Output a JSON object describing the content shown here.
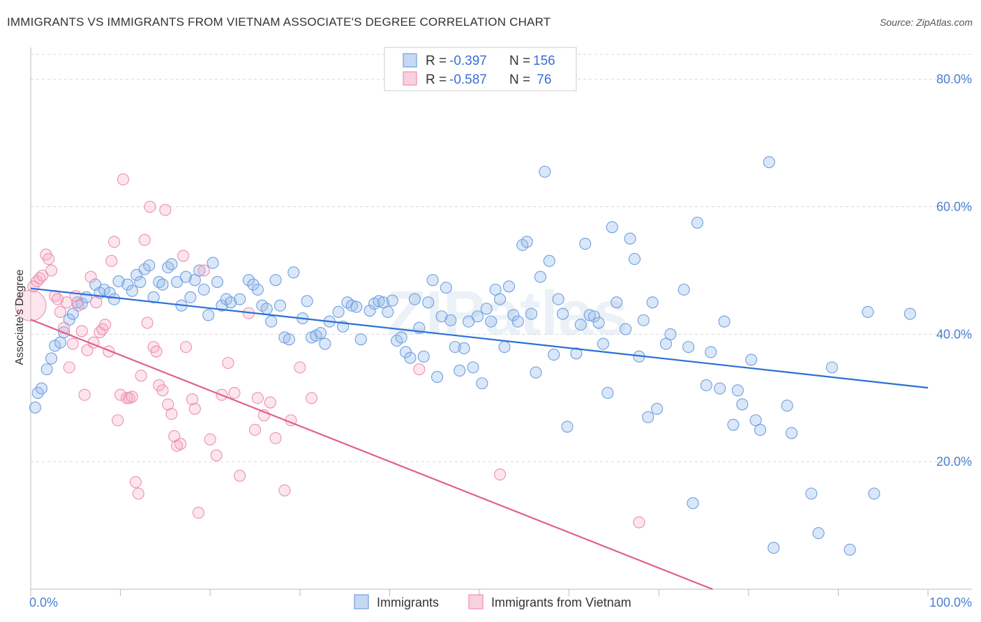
{
  "title": "IMMIGRANTS VS IMMIGRANTS FROM VIETNAM ASSOCIATE'S DEGREE CORRELATION CHART",
  "source": "Source: ZipAtlas.com",
  "watermark": "ZIPatlas",
  "colors": {
    "blue": "#6f9fe0",
    "blue_fill": "rgba(150,185,235,0.35)",
    "blue_line": "#2a6fd6",
    "pink": "#ee8fb0",
    "pink_fill": "rgba(245,170,195,0.30)",
    "pink_line": "#e0608f",
    "tick_label": "#4a7fd0",
    "grid": "#d8d8d8"
  },
  "legend": {
    "rows": [
      {
        "r_label": "R = ",
        "r_value": "-0.397",
        "n_label": "N = ",
        "n_value": "156"
      },
      {
        "r_label": "R = ",
        "r_value": "-0.587",
        "n_label": "N = ",
        "n_value": " 76"
      }
    ]
  },
  "bottom_legend": [
    "Immigrants",
    "Immigrants from Vietnam"
  ],
  "chart_data": {
    "type": "scatter",
    "title": "IMMIGRANTS VS IMMIGRANTS FROM VIETNAM ASSOCIATE'S DEGREE CORRELATION CHART",
    "xlabel": "",
    "ylabel": "Associate's Degree",
    "xlim": [
      0,
      100
    ],
    "ylim": [
      0,
      85
    ],
    "x_tick_labels": [
      "0.0%",
      "100.0%"
    ],
    "y_ticks": [
      20,
      40,
      60,
      80
    ],
    "y_tick_labels": [
      "20.0%",
      "40.0%",
      "60.0%",
      "80.0%"
    ],
    "grid": true,
    "series": [
      {
        "name": "Immigrants",
        "color": "blue",
        "trend": {
          "x": [
            0,
            100
          ],
          "y": [
            47.2,
            31.6
          ]
        },
        "points": [
          [
            0.5,
            28.5
          ],
          [
            0.8,
            30.8
          ],
          [
            1.2,
            31.5
          ],
          [
            1.8,
            34.5
          ],
          [
            2.3,
            36.2
          ],
          [
            2.7,
            38.2
          ],
          [
            3.3,
            38.7
          ],
          [
            3.7,
            40.3
          ],
          [
            4.3,
            42.3
          ],
          [
            4.7,
            43.2
          ],
          [
            5.2,
            45.0
          ],
          [
            5.7,
            44.8
          ],
          [
            6.2,
            45.8
          ],
          [
            7.2,
            47.8
          ],
          [
            7.7,
            46.5
          ],
          [
            8.2,
            47.0
          ],
          [
            8.8,
            46.5
          ],
          [
            9.3,
            45.5
          ],
          [
            9.8,
            48.3
          ],
          [
            10.8,
            47.8
          ],
          [
            11.3,
            46.8
          ],
          [
            11.8,
            49.3
          ],
          [
            12.2,
            48.2
          ],
          [
            12.7,
            50.2
          ],
          [
            13.2,
            50.8
          ],
          [
            13.7,
            45.8
          ],
          [
            14.3,
            48.2
          ],
          [
            14.7,
            47.8
          ],
          [
            15.3,
            50.5
          ],
          [
            15.7,
            51.0
          ],
          [
            16.3,
            48.2
          ],
          [
            16.8,
            44.5
          ],
          [
            17.3,
            49.0
          ],
          [
            17.8,
            45.8
          ],
          [
            18.3,
            48.5
          ],
          [
            18.8,
            50.0
          ],
          [
            19.3,
            47.0
          ],
          [
            19.8,
            43.0
          ],
          [
            20.3,
            51.2
          ],
          [
            20.8,
            48.2
          ],
          [
            21.3,
            44.5
          ],
          [
            21.8,
            45.5
          ],
          [
            22.3,
            45.0
          ],
          [
            23.3,
            45.5
          ],
          [
            24.3,
            48.5
          ],
          [
            24.8,
            47.8
          ],
          [
            25.3,
            47.0
          ],
          [
            25.8,
            44.5
          ],
          [
            26.3,
            44.0
          ],
          [
            26.8,
            42.0
          ],
          [
            27.3,
            48.5
          ],
          [
            27.8,
            44.5
          ],
          [
            28.3,
            39.5
          ],
          [
            28.8,
            39.2
          ],
          [
            29.3,
            49.7
          ],
          [
            30.3,
            42.5
          ],
          [
            30.8,
            45.2
          ],
          [
            31.3,
            39.5
          ],
          [
            31.8,
            39.8
          ],
          [
            32.3,
            40.2
          ],
          [
            32.8,
            38.5
          ],
          [
            33.3,
            42.0
          ],
          [
            34.3,
            43.5
          ],
          [
            34.8,
            41.2
          ],
          [
            35.3,
            45.0
          ],
          [
            35.8,
            44.5
          ],
          [
            36.3,
            44.3
          ],
          [
            36.8,
            39.2
          ],
          [
            37.8,
            43.7
          ],
          [
            38.3,
            44.8
          ],
          [
            38.8,
            45.2
          ],
          [
            39.3,
            45.0
          ],
          [
            39.8,
            43.5
          ],
          [
            40.3,
            45.3
          ],
          [
            40.8,
            39.0
          ],
          [
            41.3,
            39.5
          ],
          [
            41.8,
            37.2
          ],
          [
            42.3,
            36.3
          ],
          [
            42.8,
            45.5
          ],
          [
            43.3,
            41.0
          ],
          [
            43.8,
            36.5
          ],
          [
            44.3,
            45.0
          ],
          [
            44.8,
            48.5
          ],
          [
            45.3,
            33.3
          ],
          [
            45.8,
            42.8
          ],
          [
            46.3,
            47.3
          ],
          [
            46.8,
            42.2
          ],
          [
            47.3,
            38.0
          ],
          [
            47.8,
            34.3
          ],
          [
            48.3,
            37.8
          ],
          [
            48.8,
            42.0
          ],
          [
            49.3,
            34.8
          ],
          [
            49.8,
            42.8
          ],
          [
            50.3,
            32.3
          ],
          [
            50.8,
            44.0
          ],
          [
            51.3,
            42.0
          ],
          [
            51.8,
            47.0
          ],
          [
            52.3,
            45.5
          ],
          [
            52.8,
            38.0
          ],
          [
            53.3,
            47.5
          ],
          [
            53.8,
            43.0
          ],
          [
            54.3,
            42.0
          ],
          [
            54.8,
            54.0
          ],
          [
            55.3,
            54.5
          ],
          [
            55.8,
            43.2
          ],
          [
            56.3,
            34.0
          ],
          [
            56.8,
            49.0
          ],
          [
            57.3,
            65.5
          ],
          [
            57.8,
            51.5
          ],
          [
            58.3,
            36.8
          ],
          [
            58.8,
            45.5
          ],
          [
            59.3,
            43.2
          ],
          [
            59.8,
            25.5
          ],
          [
            60.8,
            37.0
          ],
          [
            61.3,
            41.5
          ],
          [
            61.8,
            54.2
          ],
          [
            62.3,
            43.0
          ],
          [
            62.8,
            42.8
          ],
          [
            63.3,
            41.8
          ],
          [
            63.8,
            38.5
          ],
          [
            64.3,
            30.8
          ],
          [
            64.8,
            56.8
          ],
          [
            65.3,
            45.0
          ],
          [
            66.3,
            40.8
          ],
          [
            66.8,
            55.0
          ],
          [
            67.3,
            51.8
          ],
          [
            67.8,
            36.5
          ],
          [
            68.3,
            42.2
          ],
          [
            68.8,
            27.0
          ],
          [
            69.3,
            45.0
          ],
          [
            69.8,
            28.3
          ],
          [
            70.8,
            38.5
          ],
          [
            71.3,
            40.0
          ],
          [
            72.8,
            47.0
          ],
          [
            73.3,
            38.0
          ],
          [
            73.8,
            13.5
          ],
          [
            74.3,
            57.5
          ],
          [
            75.3,
            32.0
          ],
          [
            75.8,
            37.2
          ],
          [
            76.8,
            31.5
          ],
          [
            77.3,
            42.0
          ],
          [
            78.3,
            25.8
          ],
          [
            78.8,
            31.2
          ],
          [
            79.3,
            29.0
          ],
          [
            80.3,
            36.0
          ],
          [
            80.8,
            26.5
          ],
          [
            81.3,
            25.0
          ],
          [
            82.8,
            6.5
          ],
          [
            82.3,
            67.0
          ],
          [
            84.3,
            28.8
          ],
          [
            84.8,
            24.5
          ],
          [
            87.8,
            8.8
          ],
          [
            87.0,
            15.0
          ],
          [
            89.3,
            34.8
          ],
          [
            91.3,
            6.2
          ],
          [
            93.3,
            43.5
          ],
          [
            98.0,
            43.2
          ],
          [
            94.0,
            15.0
          ]
        ]
      },
      {
        "name": "Immigrants from Vietnam",
        "color": "pink",
        "trend": {
          "x": [
            0,
            76
          ],
          "y": [
            42.3,
            0
          ]
        },
        "points": [
          [
            0.3,
            47.5
          ],
          [
            0.7,
            48.3
          ],
          [
            1.0,
            48.8
          ],
          [
            1.3,
            49.2
          ],
          [
            1.7,
            52.5
          ],
          [
            2.0,
            51.8
          ],
          [
            2.3,
            50.0
          ],
          [
            2.7,
            46.0
          ],
          [
            3.0,
            45.5
          ],
          [
            3.3,
            43.5
          ],
          [
            3.7,
            41.0
          ],
          [
            4.0,
            45.0
          ],
          [
            4.3,
            34.8
          ],
          [
            4.7,
            38.5
          ],
          [
            5.0,
            46.0
          ],
          [
            5.3,
            44.5
          ],
          [
            5.7,
            40.5
          ],
          [
            6.0,
            30.5
          ],
          [
            6.3,
            37.5
          ],
          [
            6.7,
            49.0
          ],
          [
            7.0,
            38.7
          ],
          [
            7.3,
            45.0
          ],
          [
            7.7,
            40.3
          ],
          [
            8.0,
            40.8
          ],
          [
            8.3,
            41.5
          ],
          [
            8.7,
            37.3
          ],
          [
            9.0,
            51.5
          ],
          [
            9.3,
            54.5
          ],
          [
            9.7,
            26.5
          ],
          [
            10.0,
            30.5
          ],
          [
            10.3,
            64.3
          ],
          [
            10.7,
            30.0
          ],
          [
            11.0,
            30.0
          ],
          [
            11.3,
            30.2
          ],
          [
            11.7,
            16.8
          ],
          [
            12.0,
            15.0
          ],
          [
            12.3,
            33.5
          ],
          [
            12.7,
            54.8
          ],
          [
            13.0,
            41.8
          ],
          [
            13.3,
            60.0
          ],
          [
            13.7,
            38.0
          ],
          [
            14.0,
            37.3
          ],
          [
            14.3,
            32.0
          ],
          [
            14.7,
            31.2
          ],
          [
            15.0,
            59.5
          ],
          [
            15.3,
            29.0
          ],
          [
            15.7,
            27.5
          ],
          [
            16.0,
            24.0
          ],
          [
            16.3,
            22.5
          ],
          [
            16.7,
            22.8
          ],
          [
            17.0,
            52.3
          ],
          [
            17.3,
            38.0
          ],
          [
            18.0,
            29.8
          ],
          [
            18.3,
            28.3
          ],
          [
            18.7,
            12.0
          ],
          [
            19.3,
            50.0
          ],
          [
            20.0,
            23.5
          ],
          [
            20.7,
            21.0
          ],
          [
            21.3,
            30.5
          ],
          [
            22.0,
            35.5
          ],
          [
            22.7,
            30.8
          ],
          [
            23.3,
            17.8
          ],
          [
            24.3,
            43.3
          ],
          [
            25.0,
            25.0
          ],
          [
            25.3,
            30.0
          ],
          [
            26.0,
            27.3
          ],
          [
            26.7,
            29.3
          ],
          [
            27.3,
            23.7
          ],
          [
            28.3,
            15.5
          ],
          [
            29.0,
            26.5
          ],
          [
            30.0,
            34.8
          ],
          [
            31.3,
            30.0
          ],
          [
            43.3,
            34.5
          ],
          [
            52.3,
            18.0
          ],
          [
            67.8,
            10.5
          ]
        ]
      }
    ]
  }
}
